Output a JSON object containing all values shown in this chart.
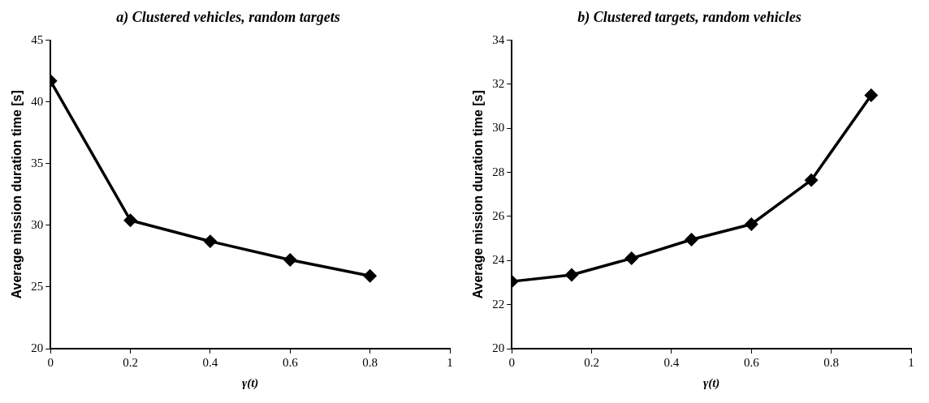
{
  "chart_data": [
    {
      "type": "line",
      "title": "a) Clustered vehicles, random targets",
      "xlabel": "γ(t)",
      "ylabel": "Average mission duration time [s]",
      "x": [
        0,
        0.2,
        0.4,
        0.6,
        0.8
      ],
      "series": [
        {
          "color": "#000000",
          "values": [
            41.7,
            30.4,
            28.7,
            27.2,
            25.9
          ]
        }
      ],
      "xlim": [
        0,
        1
      ],
      "xticks": [
        0,
        0.2,
        0.4,
        0.6,
        0.8,
        1
      ],
      "ylim": [
        20,
        45
      ],
      "yticks": [
        20,
        25,
        30,
        35,
        40,
        45
      ],
      "grid": false,
      "marker": "diamond",
      "line_style": "solid"
    },
    {
      "type": "line",
      "title": "b) Clustered targets, random vehicles",
      "xlabel": "γ(t)",
      "ylabel": "Average mission duration time [s]",
      "x": [
        0,
        0.15,
        0.3,
        0.45,
        0.6,
        0.75,
        0.9
      ],
      "series": [
        {
          "color": "#000000",
          "values": [
            23.05,
            23.35,
            24.1,
            24.95,
            25.65,
            27.65,
            31.5
          ]
        }
      ],
      "xlim": [
        0,
        1
      ],
      "xticks": [
        0,
        0.2,
        0.4,
        0.6,
        0.8,
        1
      ],
      "ylim": [
        20,
        34
      ],
      "yticks": [
        20,
        22,
        24,
        26,
        28,
        30,
        32,
        34
      ],
      "grid": false,
      "marker": "diamond",
      "line_style": "solid"
    }
  ]
}
